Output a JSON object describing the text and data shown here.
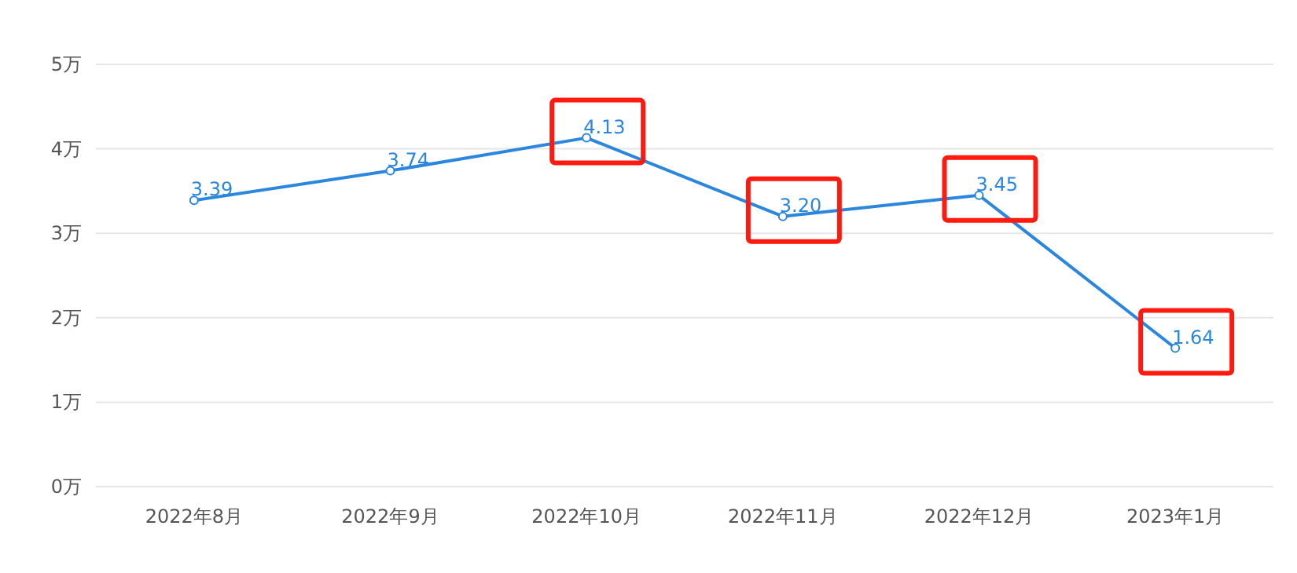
{
  "chart_data": {
    "type": "line",
    "categories": [
      "2022年8月",
      "2022年9月",
      "2022年10月",
      "2022年11月",
      "2022年12月",
      "2023年1月"
    ],
    "series": [
      {
        "color": "#2b86dd",
        "values": [
          3.39,
          3.74,
          4.13,
          3.2,
          3.45,
          1.64
        ],
        "value_labels": [
          "3.39",
          "3.74",
          "4.13",
          "3.20",
          "3.45",
          "1.64"
        ]
      }
    ],
    "ylim": [
      0,
      5
    ],
    "yticks": [
      {
        "value": 0,
        "label": "0万"
      },
      {
        "value": 1,
        "label": "1万"
      },
      {
        "value": 2,
        "label": "2万"
      },
      {
        "value": 3,
        "label": "3万"
      },
      {
        "value": 4,
        "label": "4万"
      },
      {
        "value": 5,
        "label": "5万"
      }
    ],
    "grid": "y",
    "marker": "circle",
    "line_style": "solid"
  }
}
